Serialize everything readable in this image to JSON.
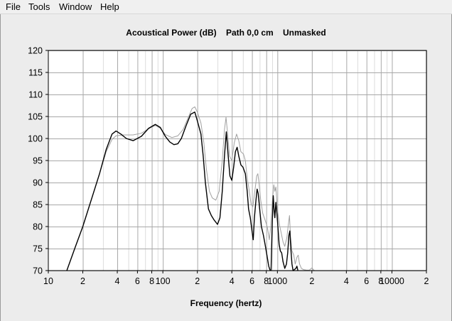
{
  "menu": {
    "items": [
      {
        "label": "File"
      },
      {
        "label": "Tools"
      },
      {
        "label": "Window"
      },
      {
        "label": "Help"
      }
    ]
  },
  "chart_data": {
    "type": "line",
    "title": "Acoustical Power (dB)    Path 0,0 cm    Unmasked",
    "xlabel": "Frequency (hertz)",
    "ylabel": "",
    "x_scale": "log",
    "xlim": [
      10,
      20000
    ],
    "ylim": [
      70,
      120
    ],
    "y_ticks": [
      70,
      75,
      80,
      85,
      90,
      95,
      100,
      105,
      110,
      115,
      120
    ],
    "x_tick_labels": [
      {
        "value": 10,
        "label": "10"
      },
      {
        "value": 20,
        "label": "2"
      },
      {
        "value": 40,
        "label": "4"
      },
      {
        "value": 60,
        "label": "6"
      },
      {
        "value": 80,
        "label": "8"
      },
      {
        "value": 100,
        "label": "100"
      },
      {
        "value": 200,
        "label": "2"
      },
      {
        "value": 400,
        "label": "4"
      },
      {
        "value": 600,
        "label": "6"
      },
      {
        "value": 800,
        "label": "8"
      },
      {
        "value": 1000,
        "label": "1000"
      },
      {
        "value": 2000,
        "label": "2"
      },
      {
        "value": 4000,
        "label": "4"
      },
      {
        "value": 6000,
        "label": "6"
      },
      {
        "value": 8000,
        "label": "8"
      },
      {
        "value": 10000,
        "label": "10000"
      },
      {
        "value": 20000,
        "label": "2"
      }
    ],
    "grid": true,
    "colors": {
      "plot_background": "#ffffff",
      "major_grid": "#a8a8a8",
      "minor_grid": "#dcdcdc",
      "series_primary": "#000000",
      "series_secondary": "#a0a0a0"
    },
    "series": [
      {
        "color": "#000000",
        "points": [
          [
            14.5,
            70
          ],
          [
            17,
            75
          ],
          [
            20,
            80
          ],
          [
            24,
            86.5
          ],
          [
            28,
            92
          ],
          [
            32,
            97.5
          ],
          [
            36,
            101
          ],
          [
            39,
            101.7
          ],
          [
            43,
            101
          ],
          [
            48,
            100
          ],
          [
            55,
            99.5
          ],
          [
            65,
            100.5
          ],
          [
            75,
            102.3
          ],
          [
            86,
            103.2
          ],
          [
            95,
            102.5
          ],
          [
            105,
            100.5
          ],
          [
            115,
            99.2
          ],
          [
            125,
            98.6
          ],
          [
            135,
            98.8
          ],
          [
            145,
            100
          ],
          [
            160,
            103
          ],
          [
            175,
            105.5
          ],
          [
            190,
            106
          ],
          [
            200,
            104
          ],
          [
            215,
            101
          ],
          [
            225,
            96
          ],
          [
            235,
            90
          ],
          [
            250,
            84
          ],
          [
            265,
            82.5
          ],
          [
            280,
            81.5
          ],
          [
            300,
            80.5
          ],
          [
            315,
            82
          ],
          [
            330,
            88
          ],
          [
            345,
            96
          ],
          [
            358,
            101.5
          ],
          [
            372,
            96
          ],
          [
            385,
            91.5
          ],
          [
            400,
            90.5
          ],
          [
            415,
            93.5
          ],
          [
            430,
            97
          ],
          [
            445,
            98
          ],
          [
            460,
            96
          ],
          [
            480,
            94
          ],
          [
            500,
            93.5
          ],
          [
            525,
            92
          ],
          [
            545,
            88
          ],
          [
            560,
            84
          ],
          [
            580,
            82
          ],
          [
            600,
            79
          ],
          [
            615,
            77
          ],
          [
            630,
            82
          ],
          [
            650,
            86
          ],
          [
            665,
            88.5
          ],
          [
            680,
            87.5
          ],
          [
            700,
            84
          ],
          [
            725,
            80
          ],
          [
            755,
            78
          ],
          [
            780,
            76
          ],
          [
            810,
            73.5
          ],
          [
            840,
            71
          ],
          [
            865,
            70
          ]
        ]
      },
      {
        "color": "#000000",
        "points": [
          [
            880,
            70
          ],
          [
            900,
            80
          ],
          [
            920,
            87
          ],
          [
            935,
            84
          ],
          [
            950,
            82
          ],
          [
            970,
            85.5
          ],
          [
            990,
            83
          ],
          [
            1010,
            80
          ],
          [
            1035,
            76
          ],
          [
            1060,
            74.5
          ],
          [
            1090,
            74
          ],
          [
            1120,
            72
          ],
          [
            1160,
            70.5
          ],
          [
            1200,
            71.5
          ],
          [
            1230,
            74
          ],
          [
            1260,
            78
          ],
          [
            1285,
            79
          ],
          [
            1310,
            75
          ],
          [
            1340,
            71.5
          ],
          [
            1370,
            70
          ],
          [
            1450,
            70.5
          ],
          [
            1480,
            71
          ],
          [
            1510,
            70
          ]
        ]
      },
      {
        "color": "#a0a0a0",
        "points": [
          [
            14.5,
            70
          ],
          [
            17,
            75
          ],
          [
            20,
            80
          ],
          [
            24,
            86.5
          ],
          [
            28,
            92
          ],
          [
            32,
            97
          ],
          [
            36,
            99.8
          ],
          [
            39,
            100.6
          ],
          [
            45,
            100.8
          ],
          [
            55,
            100.8
          ],
          [
            65,
            101.2
          ],
          [
            75,
            102.2
          ],
          [
            86,
            103
          ],
          [
            95,
            102.3
          ],
          [
            105,
            100.9
          ],
          [
            120,
            100.2
          ],
          [
            135,
            100.6
          ],
          [
            150,
            102
          ],
          [
            165,
            104.5
          ],
          [
            180,
            106.8
          ],
          [
            190,
            107.2
          ],
          [
            200,
            106
          ],
          [
            215,
            103.5
          ],
          [
            228,
            99
          ],
          [
            240,
            93
          ],
          [
            255,
            88
          ],
          [
            270,
            86.5
          ],
          [
            290,
            86
          ],
          [
            310,
            88
          ],
          [
            330,
            95
          ],
          [
            345,
            102
          ],
          [
            356,
            104.8
          ],
          [
            368,
            101
          ],
          [
            382,
            96
          ],
          [
            400,
            95
          ],
          [
            420,
            99
          ],
          [
            440,
            101
          ],
          [
            460,
            99.5
          ],
          [
            480,
            97
          ],
          [
            505,
            96.5
          ],
          [
            525,
            95
          ],
          [
            545,
            91
          ],
          [
            565,
            88.5
          ],
          [
            590,
            85
          ],
          [
            610,
            84.5
          ],
          [
            635,
            88
          ],
          [
            660,
            91.5
          ],
          [
            675,
            92
          ],
          [
            690,
            90
          ],
          [
            715,
            86
          ],
          [
            745,
            83
          ],
          [
            780,
            81.5
          ],
          [
            815,
            80
          ],
          [
            850,
            77
          ],
          [
            875,
            80
          ],
          [
            905,
            86
          ],
          [
            930,
            89.5
          ],
          [
            950,
            88
          ],
          [
            970,
            89
          ],
          [
            1000,
            84
          ],
          [
            1040,
            80.5
          ],
          [
            1080,
            78.5
          ],
          [
            1120,
            76.5
          ],
          [
            1160,
            75.5
          ],
          [
            1210,
            77.5
          ],
          [
            1240,
            80
          ],
          [
            1275,
            82.5
          ],
          [
            1300,
            78
          ],
          [
            1340,
            74.5
          ],
          [
            1390,
            73.5
          ],
          [
            1430,
            71.5
          ],
          [
            1480,
            73
          ],
          [
            1520,
            73.5
          ],
          [
            1560,
            71.5
          ],
          [
            1620,
            70.5
          ],
          [
            1700,
            70.2
          ],
          [
            1800,
            70.1
          ],
          [
            1900,
            70.1
          ],
          [
            2000,
            70.6
          ],
          [
            2100,
            70
          ]
        ]
      }
    ]
  }
}
